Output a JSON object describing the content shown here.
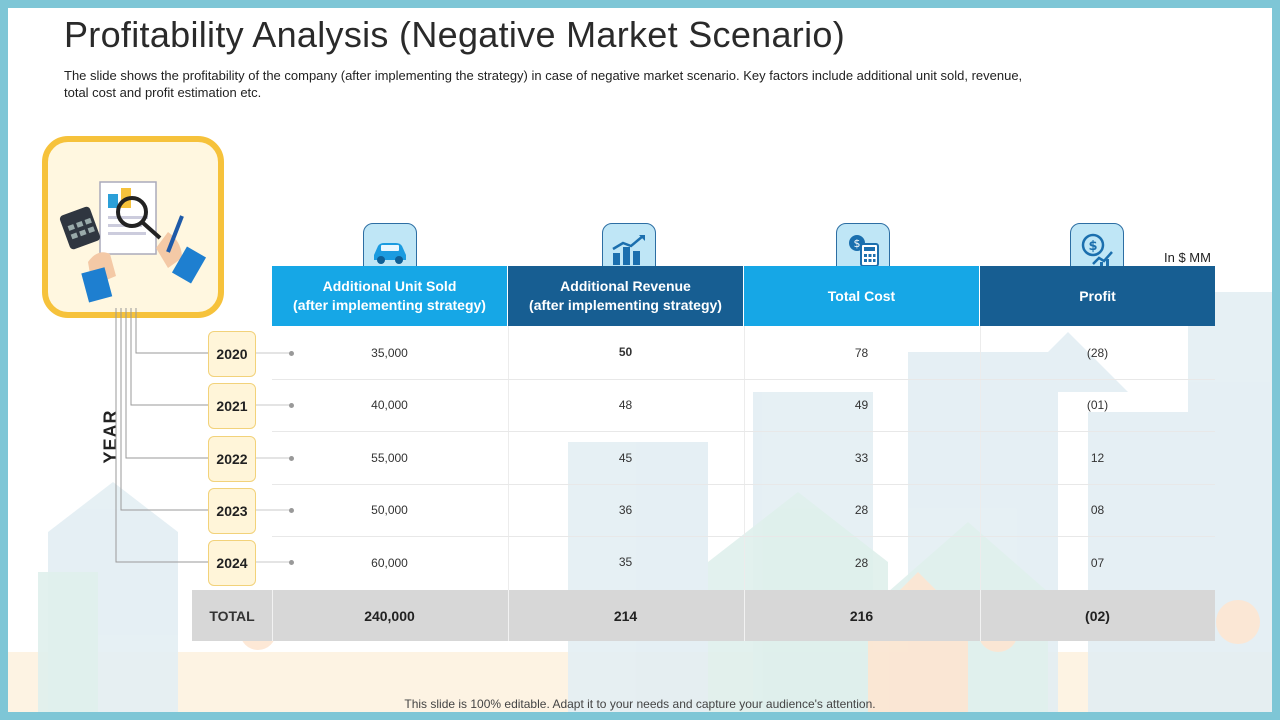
{
  "slide": {
    "title": "Profitability Analysis (Negative Market Scenario)",
    "description": "The slide shows the profitability of the company (after implementing the strategy) in case of negative market scenario. Key factors include additional unit sold, revenue, total cost and profit estimation etc.",
    "unit_note": "In $ MM",
    "year_axis_label": "YEAR",
    "footer": "This slide is 100% editable. Adapt it to your needs and capture your audience's attention."
  },
  "table": {
    "columns": [
      {
        "line1": "Additional Unit Sold",
        "line2": "(after implementing strategy)",
        "icon": "car-icon"
      },
      {
        "line1": "Additional Revenue",
        "line2": "(after implementing strategy)",
        "icon": "bar-chart-icon"
      },
      {
        "line1": "Total Cost",
        "line2": "",
        "icon": "calculator-icon"
      },
      {
        "line1": "Profit",
        "line2": "",
        "icon": "profit-growth-icon"
      }
    ],
    "rows": [
      {
        "year": "2020",
        "values": [
          "35,000",
          "50",
          "78",
          "(28)"
        ]
      },
      {
        "year": "2021",
        "values": [
          "40,000",
          "48",
          "49",
          "(01)"
        ]
      },
      {
        "year": "2022",
        "values": [
          "55,000",
          "45",
          "33",
          "12"
        ]
      },
      {
        "year": "2023",
        "values": [
          "50,000",
          "36",
          "28",
          "08"
        ]
      },
      {
        "year": "2024",
        "values": [
          "60,000",
          "35",
          "28",
          "07"
        ]
      }
    ],
    "total": {
      "label": "TOTAL",
      "values": [
        "240,000",
        "214",
        "216",
        "(02)"
      ]
    }
  },
  "colors": {
    "header_light": "#16a7e6",
    "header_dark": "#175e92",
    "accent_yellow": "#f6c23b",
    "frame": "#7ec6d6"
  }
}
